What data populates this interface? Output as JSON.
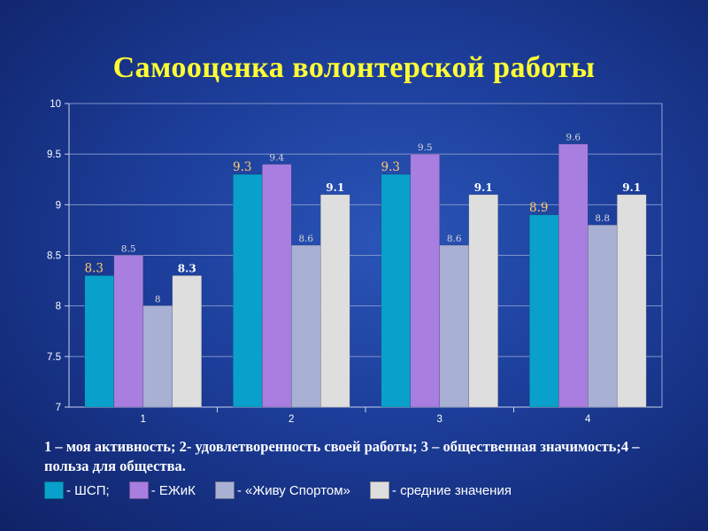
{
  "slide": {
    "title": "Самооценка волонтерской работы",
    "caption": "1 – моя активность; 2- удовлетворенность своей работы; 3 – общественная значимость;4 – польза для общества.",
    "legend": [
      {
        "label": "- ШСП;",
        "color": "#0aa0cc"
      },
      {
        "label": "- ЕЖиК",
        "color": "#a87ee0"
      },
      {
        "label": "- «Живу Спортом»",
        "color": "#a8b0d4"
      },
      {
        "label": "- средние значения",
        "color": "#dedede"
      }
    ]
  },
  "chart_data": {
    "type": "bar",
    "categories": [
      "1",
      "2",
      "3",
      "4"
    ],
    "ylim": [
      7,
      10
    ],
    "yticks": [
      "7",
      "7.5",
      "8",
      "8.5",
      "9",
      "9.5",
      "10"
    ],
    "grid": true,
    "series": [
      {
        "name": "ШСП",
        "color": "#0aa0cc",
        "values": [
          8.3,
          9.3,
          9.3,
          8.9
        ],
        "labels": [
          "8.3",
          "9.3",
          "9.3",
          "8.9"
        ]
      },
      {
        "name": "ЕЖиК",
        "color": "#a87ee0",
        "values": [
          8.5,
          9.4,
          9.5,
          9.6
        ],
        "labels": [
          "8.5",
          "9.4",
          "9.5",
          "9.6"
        ]
      },
      {
        "name": "«Живу Спортом»",
        "color": "#a8b0d4",
        "values": [
          8.0,
          8.6,
          8.6,
          8.8
        ],
        "labels": [
          "8",
          "8.6",
          "8.6",
          "8.8"
        ]
      },
      {
        "name": "средние значения",
        "color": "#dedede",
        "values": [
          8.3,
          9.1,
          9.1,
          9.1
        ],
        "labels": [
          "8.3",
          "9.1",
          "9.1",
          "9.1"
        ]
      }
    ]
  }
}
